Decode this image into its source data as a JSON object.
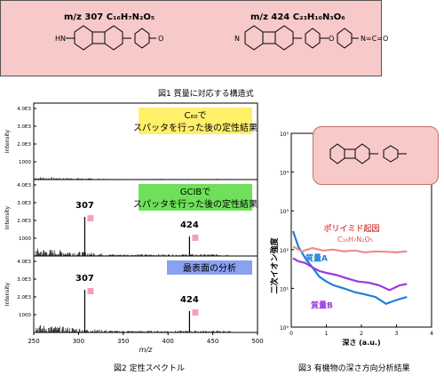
{
  "figure1": {
    "caption": "図1 質量に対応する構造式",
    "left_label": "m/z 307 C₁₆H₇N₂O₅",
    "right_label": "m/z 424 C₂₃H₁₀N₃O₆"
  },
  "figure2": {
    "caption": "図2 定性スペクトル",
    "xlabel": "m/z",
    "ylabel": "Intensity",
    "panel_labels": [
      "C₆₀でスパッタを行った後の定性結果",
      "GCIBでスパッタを行った後の定性結果",
      "最表面の分析"
    ],
    "panel_colors": [
      "#fff06a",
      "#6fe05a",
      "#8aa0f0"
    ],
    "peak_labels": [
      "307",
      "424"
    ]
  },
  "figure3": {
    "caption": "図3 有機物の深さ方向分析結果",
    "xlabel": "深さ (a.u.)",
    "ylabel": "二次イオン強度",
    "annotation_polyimide": "ポリイミド起因",
    "annotation_formula": "C₁₆H₇N₂O₅",
    "series_a_label": "質量A",
    "series_b_label": "質量B"
  },
  "chart_data": [
    {
      "type": "line",
      "title": "",
      "xlabel": "m/z",
      "ylabel": "Intensity",
      "xlim": [
        250,
        500
      ],
      "x_ticks": [
        250,
        300,
        350,
        400,
        450,
        500
      ],
      "y_ticks": [
        "1000",
        "2.0E3",
        "3.0E3",
        "4.0E3"
      ],
      "ylim": [
        0,
        4000
      ],
      "panels": [
        {
          "label": "C₆₀でスパッタを行った後の定性結果",
          "peaks": []
        },
        {
          "label": "GCIBでスパッタを行った後の定性結果",
          "peaks": [
            {
              "x": 307,
              "y": 2200
            },
            {
              "x": 424,
              "y": 1100
            }
          ]
        },
        {
          "label": "最表面の分析",
          "peaks": [
            {
              "x": 307,
              "y": 2400
            },
            {
              "x": 424,
              "y": 1200
            }
          ]
        }
      ]
    },
    {
      "type": "line",
      "title": "",
      "xlabel": "深さ (a.u.)",
      "ylabel": "二次イオン強度",
      "xlim": [
        0,
        4
      ],
      "x_ticks": [
        0,
        1,
        2,
        3,
        4
      ],
      "y_scale": "log",
      "ylim": [
        1,
        100000
      ],
      "y_ticks": [
        "10⁰",
        "10¹",
        "10²",
        "10³",
        "10⁴",
        "10⁵"
      ],
      "series": [
        {
          "name": "質量A",
          "color": "#1f7fd8",
          "x": [
            0.05,
            0.2,
            0.4,
            0.6,
            0.8,
            1.0,
            1.2,
            1.5,
            1.8,
            2.1,
            2.4,
            2.7,
            3.0,
            3.3
          ],
          "y": [
            300,
            120,
            60,
            35,
            20,
            15,
            12,
            10,
            8,
            7,
            6,
            4,
            5,
            6
          ]
        },
        {
          "name": "質量B",
          "color": "#9a3ae0",
          "x": [
            0.05,
            0.2,
            0.4,
            0.6,
            0.8,
            1.0,
            1.3,
            1.6,
            1.9,
            2.2,
            2.5,
            2.8,
            3.1,
            3.3
          ],
          "y": [
            60,
            50,
            45,
            35,
            28,
            25,
            22,
            18,
            15,
            14,
            12,
            9,
            12,
            13
          ]
        },
        {
          "name": "ポリイミド起因",
          "color": "#f08a8a",
          "x": [
            0.05,
            0.3,
            0.6,
            0.9,
            1.2,
            1.5,
            1.8,
            2.1,
            2.4,
            2.7,
            3.0,
            3.3
          ],
          "y": [
            120,
            90,
            110,
            95,
            100,
            90,
            95,
            85,
            90,
            88,
            85,
            90
          ]
        }
      ]
    }
  ]
}
